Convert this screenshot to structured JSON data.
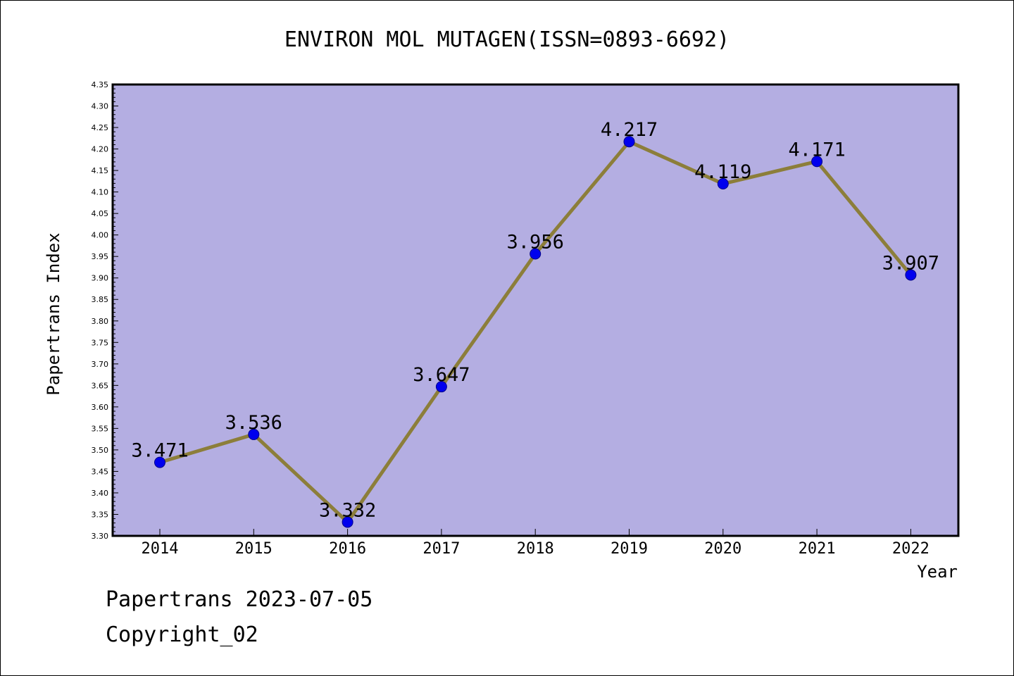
{
  "chart_data": {
    "type": "line",
    "title": "ENVIRON MOL MUTAGEN(ISSN=0893-6692)",
    "xlabel": "Year",
    "ylabel": "Papertrans Index",
    "categories": [
      "2014",
      "2015",
      "2016",
      "2017",
      "2018",
      "2019",
      "2020",
      "2021",
      "2022"
    ],
    "values": [
      3.471,
      3.536,
      3.332,
      3.647,
      3.956,
      4.217,
      4.119,
      4.171,
      3.907
    ],
    "value_labels": [
      "3.471",
      "3.536",
      "3.332",
      "3.647",
      "3.956",
      "4.217",
      "4.119",
      "4.171",
      "3.907"
    ],
    "ylim": [
      3.3,
      4.35
    ],
    "ytick_step": 0.05,
    "grid": false,
    "colors": {
      "plot_background": "#b4aee2",
      "line": "#8c7e3a",
      "marker": "#0000ee"
    }
  },
  "footer": {
    "line1": "Papertrans 2023-07-05",
    "line2": "Copyright_02"
  }
}
